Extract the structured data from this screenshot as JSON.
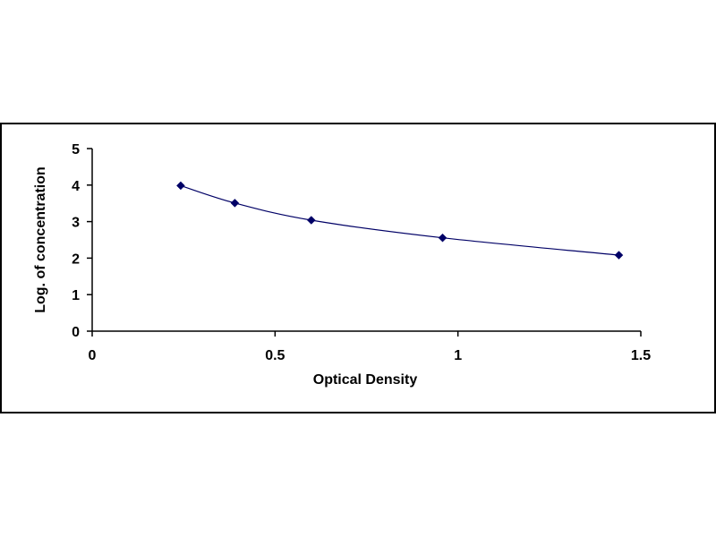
{
  "chart_data": {
    "type": "scatter",
    "title": "",
    "xlabel": "Optical Density",
    "ylabel": "Log. of concentration",
    "xlim": [
      0,
      1.5
    ],
    "ylim": [
      0,
      5
    ],
    "x_ticks": [
      {
        "value": 0,
        "label": "0"
      },
      {
        "value": 0.5,
        "label": "0.5"
      },
      {
        "value": 1,
        "label": "1"
      },
      {
        "value": 1.5,
        "label": "1.5"
      }
    ],
    "y_ticks": [
      {
        "value": 0,
        "label": "0"
      },
      {
        "value": 1,
        "label": "1"
      },
      {
        "value": 2,
        "label": "2"
      },
      {
        "value": 3,
        "label": "3"
      },
      {
        "value": 4,
        "label": "4"
      },
      {
        "value": 5,
        "label": "5"
      }
    ],
    "grid": false,
    "legend": "none",
    "series": [
      {
        "x": [
          0.242,
          0.39,
          0.599,
          0.958,
          1.44
        ],
        "y": [
          3.985,
          3.508,
          3.039,
          2.556,
          2.081
        ],
        "marker": "diamond",
        "trendline": "smooth"
      }
    ],
    "colors": {
      "marker": "#000066",
      "line": "#000066",
      "axis": "#000000",
      "frame": "#000000"
    }
  }
}
